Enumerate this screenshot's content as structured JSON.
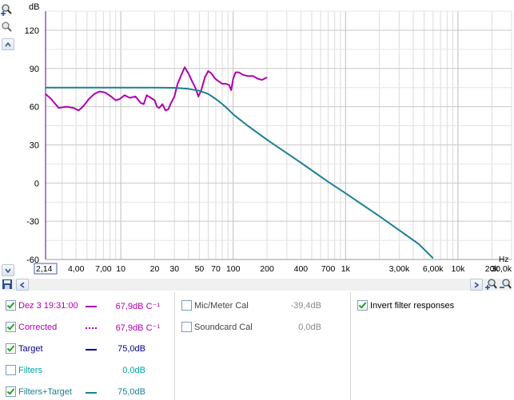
{
  "axis": {
    "y_unit": "dB",
    "x_unit": "Hz",
    "y_ticks": [
      "120",
      "90",
      "60",
      "30",
      "0",
      "-30",
      "-60"
    ],
    "x_ticks": [
      {
        "label": "2,14",
        "hz": 2.14
      },
      {
        "label": "4,00",
        "hz": 4
      },
      {
        "label": "7,00",
        "hz": 7
      },
      {
        "label": "10",
        "hz": 10
      },
      {
        "label": "20",
        "hz": 20
      },
      {
        "label": "30",
        "hz": 30
      },
      {
        "label": "50",
        "hz": 50
      },
      {
        "label": "70",
        "hz": 70
      },
      {
        "label": "100",
        "hz": 100
      },
      {
        "label": "200",
        "hz": 200
      },
      {
        "label": "400",
        "hz": 400
      },
      {
        "label": "700",
        "hz": 700
      },
      {
        "label": "1k",
        "hz": 1000
      },
      {
        "label": "3,00k",
        "hz": 3000
      },
      {
        "label": "6,00k",
        "hz": 6000
      },
      {
        "label": "10k",
        "hz": 10000
      },
      {
        "label": "20k",
        "hz": 20000
      },
      {
        "label": "30,0k",
        "hz": 30000
      }
    ]
  },
  "chart_data": {
    "type": "line",
    "xlabel": "Hz",
    "ylabel": "dB",
    "x_scale": "log",
    "xlim": [
      2.14,
      30000
    ],
    "ylim": [
      -60,
      135
    ],
    "grid": true,
    "series": [
      {
        "name": "Dez 3 19:31:00",
        "color": "#b000b0",
        "points": [
          [
            2.14,
            70
          ],
          [
            2.4,
            66
          ],
          [
            2.8,
            59
          ],
          [
            3.3,
            60
          ],
          [
            3.8,
            59
          ],
          [
            4.2,
            57
          ],
          [
            4.6,
            60
          ],
          [
            5.2,
            66
          ],
          [
            5.8,
            70
          ],
          [
            6.5,
            72
          ],
          [
            7.3,
            71
          ],
          [
            8.2,
            68
          ],
          [
            9,
            65
          ],
          [
            9.8,
            66
          ],
          [
            10.8,
            69
          ],
          [
            12,
            67
          ],
          [
            13.5,
            68
          ],
          [
            15,
            63
          ],
          [
            16,
            62
          ],
          [
            17,
            69
          ],
          [
            18.5,
            67
          ],
          [
            20,
            65
          ],
          [
            21,
            60
          ],
          [
            22,
            59
          ],
          [
            23.5,
            62
          ],
          [
            25,
            57
          ],
          [
            26.5,
            58
          ],
          [
            28,
            63
          ],
          [
            30,
            68
          ],
          [
            32,
            78
          ],
          [
            35,
            86
          ],
          [
            37,
            91
          ],
          [
            40,
            86
          ],
          [
            43,
            80
          ],
          [
            46,
            75
          ],
          [
            49,
            68
          ],
          [
            52,
            73
          ],
          [
            56,
            83
          ],
          [
            60,
            88
          ],
          [
            64,
            86
          ],
          [
            69,
            82
          ],
          [
            74,
            80
          ],
          [
            80,
            78
          ],
          [
            86,
            78
          ],
          [
            92,
            77
          ],
          [
            96,
            73
          ],
          [
            100,
            82
          ],
          [
            105,
            87
          ],
          [
            112,
            87
          ],
          [
            122,
            85
          ],
          [
            135,
            84
          ],
          [
            150,
            84
          ],
          [
            165,
            82
          ],
          [
            180,
            81
          ],
          [
            200,
            83
          ]
        ]
      },
      {
        "name": "Filters+Target",
        "color": "#1a7f94",
        "points": [
          [
            2.14,
            75
          ],
          [
            5,
            75
          ],
          [
            10,
            75
          ],
          [
            20,
            75
          ],
          [
            30,
            74.8
          ],
          [
            40,
            74
          ],
          [
            50,
            72.5
          ],
          [
            60,
            70
          ],
          [
            70,
            66
          ],
          [
            80,
            62
          ],
          [
            90,
            58
          ],
          [
            100,
            54
          ],
          [
            130,
            46
          ],
          [
            200,
            34
          ],
          [
            400,
            16
          ],
          [
            700,
            1
          ],
          [
            1000,
            -8
          ],
          [
            2000,
            -26
          ],
          [
            3000,
            -37
          ],
          [
            4500,
            -48
          ],
          [
            6000,
            -59
          ]
        ]
      }
    ]
  },
  "legend": {
    "left": [
      {
        "label": "Dez 3 19:31:00",
        "value": "67,9dB C⁻¹",
        "checked": true,
        "color": "#b000b0",
        "style": "solid"
      },
      {
        "label": "Corrected",
        "value": "67,9dB C⁻¹",
        "checked": true,
        "color": "#b000b0",
        "style": "dotted"
      },
      {
        "label": "Target",
        "value": "75,0dB",
        "checked": true,
        "color": "#00008b",
        "style": "solid"
      },
      {
        "label": "Filters",
        "value": "0,0dB",
        "checked": false,
        "color": "#00a0a0",
        "style": "none"
      },
      {
        "label": "Filters+Target",
        "value": "75,0dB",
        "checked": true,
        "color": "#1a7f94",
        "style": "solid"
      }
    ],
    "middle": [
      {
        "label": "Mic/Meter Cal",
        "value": "-39,4dB",
        "checked": false
      },
      {
        "label": "Soundcard Cal",
        "value": "0,0dB",
        "checked": false
      }
    ],
    "right": [
      {
        "label": "Invert filter responses",
        "checked": true
      }
    ]
  }
}
